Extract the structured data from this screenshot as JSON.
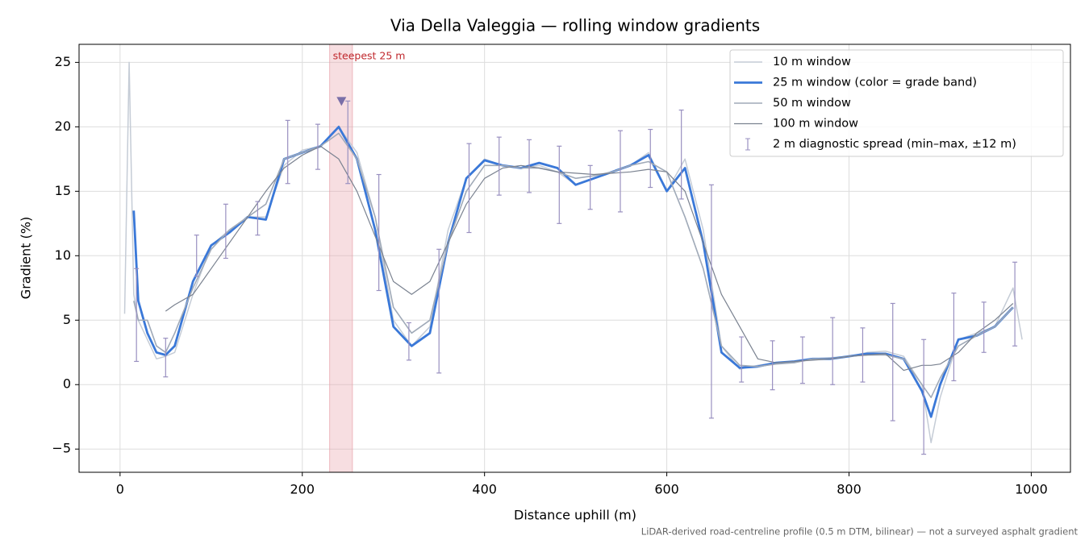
{
  "chart_data": {
    "type": "line",
    "title": "Via Della Valeggia — rolling window gradients",
    "x_label": "Distance uphill (m)",
    "y_label": "Gradient (%)",
    "footnote": "LiDAR-derived road-centreline profile (0.5 m DTM, bilinear) — not a surveyed asphalt gradient",
    "xlim": [
      -45,
      1043
    ],
    "ylim": [
      -6.8,
      26.4
    ],
    "xticks": [
      0,
      200,
      400,
      600,
      800,
      1000
    ],
    "yticks": [
      {
        "value": -5,
        "label": "−5"
      },
      0,
      5,
      10,
      15,
      20,
      25
    ],
    "grid": true,
    "legend": "upper right",
    "x": [
      5,
      10,
      15,
      20,
      30,
      40,
      50,
      60,
      80,
      100,
      120,
      140,
      160,
      180,
      200,
      220,
      240,
      260,
      280,
      300,
      320,
      340,
      360,
      380,
      400,
      420,
      440,
      460,
      480,
      500,
      520,
      540,
      560,
      580,
      600,
      620,
      640,
      660,
      680,
      700,
      720,
      740,
      760,
      780,
      800,
      820,
      840,
      860,
      880,
      890,
      900,
      920,
      940,
      960,
      980,
      990
    ],
    "series": [
      {
        "name": "10 m window",
        "color": "#c5ccd6",
        "width": 1.5,
        "values": [
          5.5,
          25,
          7,
          5,
          3.5,
          2,
          2.2,
          2.5,
          7,
          10.8,
          12,
          13,
          13,
          17,
          18.2,
          18.5,
          20,
          18,
          13,
          5,
          3,
          4.5,
          12,
          16,
          17.5,
          17,
          16.8,
          17,
          16.5,
          15.5,
          16,
          16.5,
          17,
          18,
          15,
          17.5,
          12,
          3,
          1.2,
          1.5,
          1.7,
          1.8,
          2,
          2.1,
          2.2,
          2.5,
          2.6,
          2.2,
          0,
          -4.5,
          -1,
          3.5,
          4,
          4.5,
          7.5,
          3.5
        ]
      },
      {
        "name": "25 m window (color = grade band)",
        "color": "#3a78d8",
        "width": 2.8,
        "values": [
          null,
          null,
          13.5,
          6.5,
          4,
          2.5,
          2.3,
          3,
          8,
          10.8,
          11.8,
          13,
          12.8,
          17.5,
          18,
          18.5,
          20,
          17.5,
          12,
          4.5,
          3,
          4,
          11,
          16,
          17.4,
          17,
          16.8,
          17.2,
          16.8,
          15.5,
          16,
          16.5,
          17,
          17.8,
          15,
          16.8,
          11,
          2.5,
          1.3,
          1.4,
          1.7,
          1.8,
          2,
          2,
          2.2,
          2.4,
          2.4,
          2,
          -0.5,
          -2.5,
          0,
          3.5,
          3.8,
          4.5,
          6,
          null
        ]
      },
      {
        "name": "50 m window",
        "color": "#a0aab8",
        "width": 1.6,
        "values": [
          null,
          null,
          6.5,
          5,
          5,
          3,
          2.5,
          4,
          7.5,
          10.5,
          12,
          13,
          14,
          17.5,
          18,
          18.5,
          19.5,
          17.5,
          13,
          6,
          4,
          5,
          11,
          15,
          17,
          17,
          16.8,
          16.8,
          16.5,
          16,
          16.2,
          16.5,
          17,
          17.3,
          16.5,
          13,
          9,
          3,
          1.5,
          1.4,
          1.6,
          1.7,
          2,
          2,
          2.2,
          2.3,
          2.3,
          2,
          0,
          -1,
          0.5,
          3,
          3.8,
          4.5,
          6,
          null
        ]
      },
      {
        "name": "100 m window",
        "color": "#7a8290",
        "width": 1.2,
        "values": [
          null,
          null,
          null,
          null,
          null,
          null,
          5.7,
          6.2,
          7,
          9,
          11,
          13,
          15,
          16.8,
          17.8,
          18.5,
          17.5,
          15,
          11.5,
          8,
          7,
          8,
          11,
          14,
          16,
          16.8,
          17,
          16.8,
          16.5,
          16.4,
          16.3,
          16.4,
          16.5,
          16.7,
          16.5,
          15,
          11,
          7,
          4.5,
          2,
          1.7,
          1.8,
          1.9,
          2,
          2.2,
          2.3,
          2.4,
          1.1,
          1.5,
          1.5,
          1.6,
          2.5,
          4,
          5,
          6.3,
          null
        ]
      }
    ],
    "spread": {
      "name": "2 m diagnostic spread (min–max, ±12 m)",
      "color": "#9990c0",
      "x": [
        18,
        50,
        84,
        116,
        151,
        184,
        217,
        250,
        284,
        317,
        350,
        383,
        416,
        449,
        482,
        516,
        549,
        582,
        616,
        649,
        682,
        716,
        749,
        782,
        815,
        848,
        882,
        915,
        948,
        982
      ],
      "lows": [
        1.8,
        0.6,
        8.4,
        9.8,
        11.6,
        15.6,
        16.7,
        15.6,
        7.3,
        1.9,
        0.9,
        11.8,
        14.7,
        14.9,
        12.5,
        13.6,
        13.4,
        15.3,
        14.4,
        -2.6,
        0.2,
        -0.4,
        0.1,
        0,
        0.2,
        -2.8,
        -5.4,
        0.3,
        2.5,
        3
      ],
      "highs": [
        9,
        3.6,
        11.6,
        14,
        14.2,
        20.5,
        20.2,
        22,
        16.3,
        4.8,
        10.5,
        18.7,
        19.2,
        19,
        18.5,
        17,
        19.7,
        19.8,
        21.3,
        15.5,
        3.7,
        3.4,
        3.7,
        5.2,
        4.4,
        6.3,
        3.5,
        7.1,
        6.4,
        9.5
      ]
    },
    "highlight": {
      "label": "steepest 25 m",
      "span": [
        230,
        255
      ],
      "color": "#e8a0a8",
      "marker_x": 243,
      "marker_y": 22,
      "marker_color": "#7a6fa8"
    }
  }
}
